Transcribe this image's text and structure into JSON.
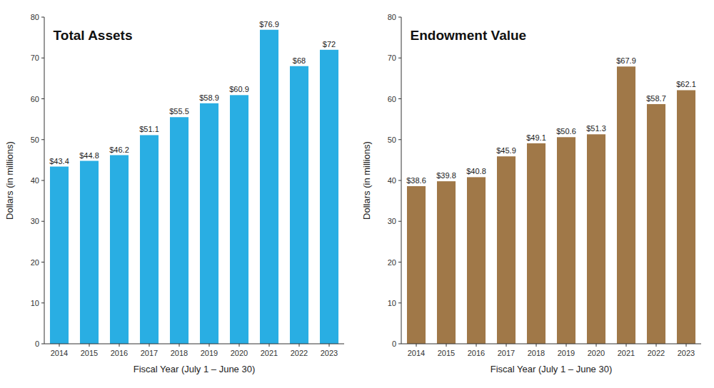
{
  "chart_data": [
    {
      "type": "bar",
      "title": "Total Assets",
      "xlabel": "Fiscal Year (July 1 – June 30)",
      "ylabel": "Dollars (in millions)",
      "categories": [
        "2014",
        "2015",
        "2016",
        "2017",
        "2018",
        "2019",
        "2020",
        "2021",
        "2022",
        "2023"
      ],
      "values": [
        43.4,
        44.8,
        46.2,
        51.1,
        55.5,
        58.9,
        60.9,
        76.9,
        68.0,
        72.0
      ],
      "value_labels": [
        "$43.4",
        "$44.8",
        "$46.2",
        "$51.1",
        "$55.5",
        "$58.9",
        "$60.9",
        "$76.9",
        "$68",
        "$72"
      ],
      "color": "#29aee3",
      "ylim": [
        0,
        80
      ],
      "yticks": [
        0,
        10,
        20,
        30,
        40,
        50,
        60,
        70,
        80
      ],
      "data_labels": true,
      "grid": false
    },
    {
      "type": "bar",
      "title": "Endowment Value",
      "xlabel": "Fiscal Year (July 1 – June 30)",
      "ylabel": "Dollars (in millions)",
      "categories": [
        "2014",
        "2015",
        "2016",
        "2017",
        "2018",
        "2019",
        "2020",
        "2021",
        "2022",
        "2023"
      ],
      "values": [
        38.6,
        39.8,
        40.8,
        45.9,
        49.1,
        50.6,
        51.3,
        67.9,
        58.7,
        62.1
      ],
      "value_labels": [
        "$38.6",
        "$39.8",
        "$40.8",
        "$45.9",
        "$49.1",
        "$50.6",
        "$51.3",
        "$67.9",
        "$58.7",
        "$62.1"
      ],
      "color": "#a07848",
      "ylim": [
        0,
        80
      ],
      "yticks": [
        0,
        10,
        20,
        30,
        40,
        50,
        60,
        70,
        80
      ],
      "data_labels": true,
      "grid": false
    }
  ]
}
